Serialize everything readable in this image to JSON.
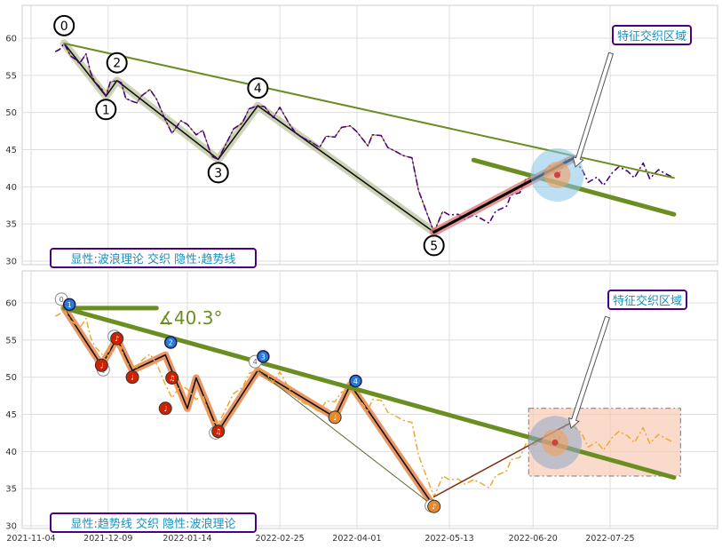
{
  "chart_data": [
    {
      "type": "line",
      "panel": "top",
      "ylim": [
        30,
        64
      ],
      "yticks": [
        30,
        35,
        40,
        45,
        50,
        55,
        60
      ],
      "grid": true,
      "price_series": {
        "style": "dash-dot",
        "color": "#4b0082",
        "x": [
          "2021-11-15",
          "2021-11-17",
          "2021-11-19",
          "2021-11-22",
          "2021-11-24",
          "2021-11-26",
          "2021-11-29",
          "2021-12-01",
          "2021-12-03",
          "2021-12-06",
          "2021-12-08",
          "2021-12-10",
          "2021-12-13",
          "2021-12-15",
          "2021-12-17",
          "2021-12-20",
          "2021-12-22",
          "2021-12-24",
          "2021-12-28",
          "2021-12-31",
          "2022-01-04",
          "2022-01-07",
          "2022-01-11",
          "2022-01-14",
          "2022-01-18",
          "2022-01-21",
          "2022-01-25",
          "2022-01-28",
          "2022-02-04",
          "2022-02-08",
          "2022-02-11",
          "2022-02-15",
          "2022-02-18",
          "2022-02-22",
          "2022-02-25",
          "2022-03-01",
          "2022-03-04",
          "2022-03-08",
          "2022-03-11",
          "2022-03-15",
          "2022-03-18",
          "2022-03-22",
          "2022-03-25",
          "2022-03-29",
          "2022-04-01",
          "2022-04-06",
          "2022-04-08",
          "2022-04-12",
          "2022-04-15",
          "2022-04-19",
          "2022-04-22",
          "2022-04-26",
          "2022-04-29",
          "2022-05-06",
          "2022-05-10",
          "2022-05-13",
          "2022-05-17",
          "2022-05-20",
          "2022-05-24",
          "2022-05-27",
          "2022-05-31",
          "2022-06-03",
          "2022-06-08",
          "2022-06-10",
          "2022-06-14",
          "2022-06-17",
          "2022-06-21",
          "2022-06-24",
          "2022-06-28",
          "2022-07-01",
          "2022-07-05",
          "2022-07-08",
          "2022-07-12",
          "2022-07-15",
          "2022-07-19",
          "2022-07-22",
          "2022-07-26",
          "2022-07-29",
          "2022-08-02",
          "2022-08-05",
          "2022-08-09",
          "2022-08-12",
          "2022-08-16",
          "2022-08-19",
          "2022-08-23"
        ],
        "y": [
          58.2,
          58.5,
          59.3,
          57.6,
          57.2,
          56.6,
          57.9,
          55.4,
          54.1,
          53.2,
          52.2,
          54.1,
          54.3,
          54.0,
          51.9,
          51.5,
          51.3,
          52.2,
          53.1,
          51.8,
          49.0,
          47.2,
          48.9,
          48.4,
          47.0,
          47.6,
          44.1,
          43.7,
          47.8,
          48.6,
          50.5,
          50.9,
          50.8,
          49.3,
          50.7,
          48.6,
          47.3,
          46.5,
          46.1,
          45.3,
          46.8,
          46.7,
          48.0,
          48.2,
          47.4,
          45.5,
          47.0,
          46.9,
          45.3,
          44.7,
          44.2,
          43.9,
          39.5,
          33.9,
          36.7,
          36.2,
          36.3,
          35.6,
          36.2,
          35.8,
          35.1,
          36.7,
          37.4,
          38.9,
          39.2,
          41.2,
          40.9,
          41.7,
          42.9,
          41.2,
          43.8,
          43.4,
          42.5,
          40.6,
          41.3,
          40.2,
          41.9,
          42.7,
          42.1,
          41.2,
          43.2,
          41.1,
          42.3,
          41.8,
          41.2
        ]
      },
      "wave_points": [
        {
          "label": "0",
          "x": "2021-11-19",
          "y": 59.3
        },
        {
          "label": "1",
          "x": "2021-12-08",
          "y": 52.2
        },
        {
          "label": "2",
          "x": "2021-12-13",
          "y": 54.3
        },
        {
          "label": "3",
          "x": "2022-01-28",
          "y": 43.7
        },
        {
          "label": "4",
          "x": "2022-02-15",
          "y": 50.9
        },
        {
          "label": "5",
          "x": "2022-05-06",
          "y": 33.9
        }
      ],
      "trendlines": [
        {
          "from": {
            "x": "2021-11-19",
            "y": 59.3
          },
          "to": {
            "x": "2022-08-23",
            "y": 41.2
          },
          "style": "thin"
        },
        {
          "from": {
            "x": "2022-05-24",
            "y": 43.6
          },
          "to": {
            "x": "2022-08-23",
            "y": 36.3
          },
          "style": "thick"
        }
      ],
      "annotation": "特征交织区域",
      "caption": "显性:波浪理论 交织 隐性:趋势线"
    },
    {
      "type": "line",
      "panel": "bottom",
      "ylim": [
        30,
        64
      ],
      "yticks": [
        30,
        35,
        40,
        45,
        50,
        55,
        60
      ],
      "xticks": [
        "2021-11-04",
        "2021-12-09",
        "2022-01-14",
        "2022-02-25",
        "2022-04-01",
        "2022-05-13",
        "2022-06-20",
        "2022-07-25"
      ],
      "grid": true,
      "price_series_color": "#f0a830",
      "angle_label": "∡40.3°",
      "wave_markers": [
        {
          "label": "0",
          "x": "2021-11-19",
          "y": 59.3
        },
        {
          "label": "1",
          "x": "2021-12-08",
          "y": 52.2
        },
        {
          "label": "2",
          "x": "2021-12-13",
          "y": 54.3
        },
        {
          "label": "3",
          "x": "2022-01-28",
          "y": 43.7
        },
        {
          "label": "4",
          "x": "2022-02-15",
          "y": 50.9
        },
        {
          "label": "5",
          "x": "2022-05-06",
          "y": 33.9
        }
      ],
      "blue_markers": [
        {
          "label": "1",
          "x": "2021-11-19",
          "y": 59.3
        },
        {
          "label": "2",
          "x": "2022-01-04",
          "y": 54.2
        },
        {
          "label": "3",
          "x": "2022-02-15",
          "y": 52.3
        },
        {
          "label": "4",
          "x": "2022-03-29",
          "y": 49.0
        }
      ],
      "note_markers": [
        {
          "label": "♩",
          "x": "2021-12-06",
          "y": 51.6,
          "color": "#cc2200"
        },
        {
          "label": "♪",
          "x": "2021-12-13",
          "y": 55.2,
          "color": "#cc2200"
        },
        {
          "label": "♩",
          "x": "2021-12-20",
          "y": 50.0,
          "color": "#cc2200"
        },
        {
          "label": "♫",
          "x": "2022-01-07",
          "y": 49.9,
          "color": "#cc2200"
        },
        {
          "label": "♩",
          "x": "2022-01-04",
          "y": 45.8,
          "color": "#cc2200"
        },
        {
          "label": "♫",
          "x": "2022-01-28",
          "y": 42.7,
          "color": "#cc2200"
        },
        {
          "label": "♩",
          "x": "2022-03-22",
          "y": 44.6,
          "color": "#e88a2a"
        },
        {
          "label": "♪",
          "x": "2022-05-06",
          "y": 32.6,
          "color": "#e88a2a"
        }
      ],
      "trendlines": [
        {
          "from": {
            "x": "2021-11-19",
            "y": 59.3
          },
          "to": {
            "x": "2021-12-31",
            "y": 59.3
          },
          "style": "thick"
        },
        {
          "from": {
            "x": "2021-11-19",
            "y": 59.3
          },
          "to": {
            "x": "2022-08-23",
            "y": 36.5
          },
          "style": "thick"
        }
      ],
      "annotation": "特征交织区域",
      "caption": "显性:趋势线 交织 隐性:波浪理论"
    }
  ]
}
